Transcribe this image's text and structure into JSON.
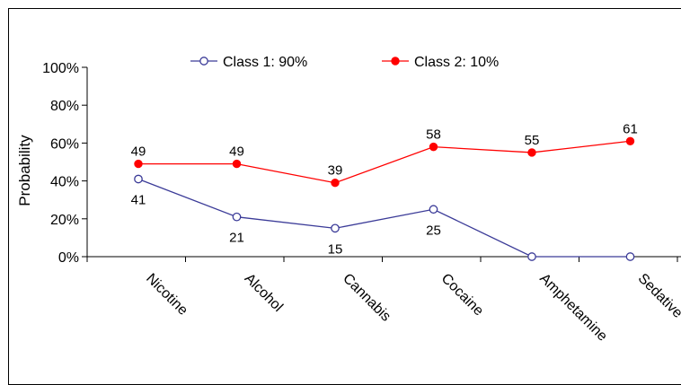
{
  "chart_data": {
    "type": "line",
    "categories": [
      "Nicotine",
      "Alcohol",
      "Cannabis",
      "Cocaine",
      "Amphetamine",
      "Sedative"
    ],
    "series": [
      {
        "name": "Class 1: 90%",
        "values": [
          41,
          21,
          15,
          25,
          0,
          0
        ],
        "labels": [
          "41",
          "21",
          "15",
          "25",
          "",
          ""
        ],
        "color": "#3b3b98",
        "marker": "open-circle"
      },
      {
        "name": "Class 2: 10%",
        "values": [
          49,
          49,
          39,
          58,
          55,
          61
        ],
        "labels": [
          "49",
          "49",
          "39",
          "58",
          "55",
          "61"
        ],
        "color": "#ff0000",
        "marker": "filled-circle"
      }
    ],
    "ylabel": "Probability",
    "xlabel": "",
    "ylim": [
      0,
      100
    ],
    "yticks": [
      "0%",
      "20%",
      "40%",
      "60%",
      "80%",
      "100%"
    ],
    "grid": false,
    "legend_position": "top"
  }
}
